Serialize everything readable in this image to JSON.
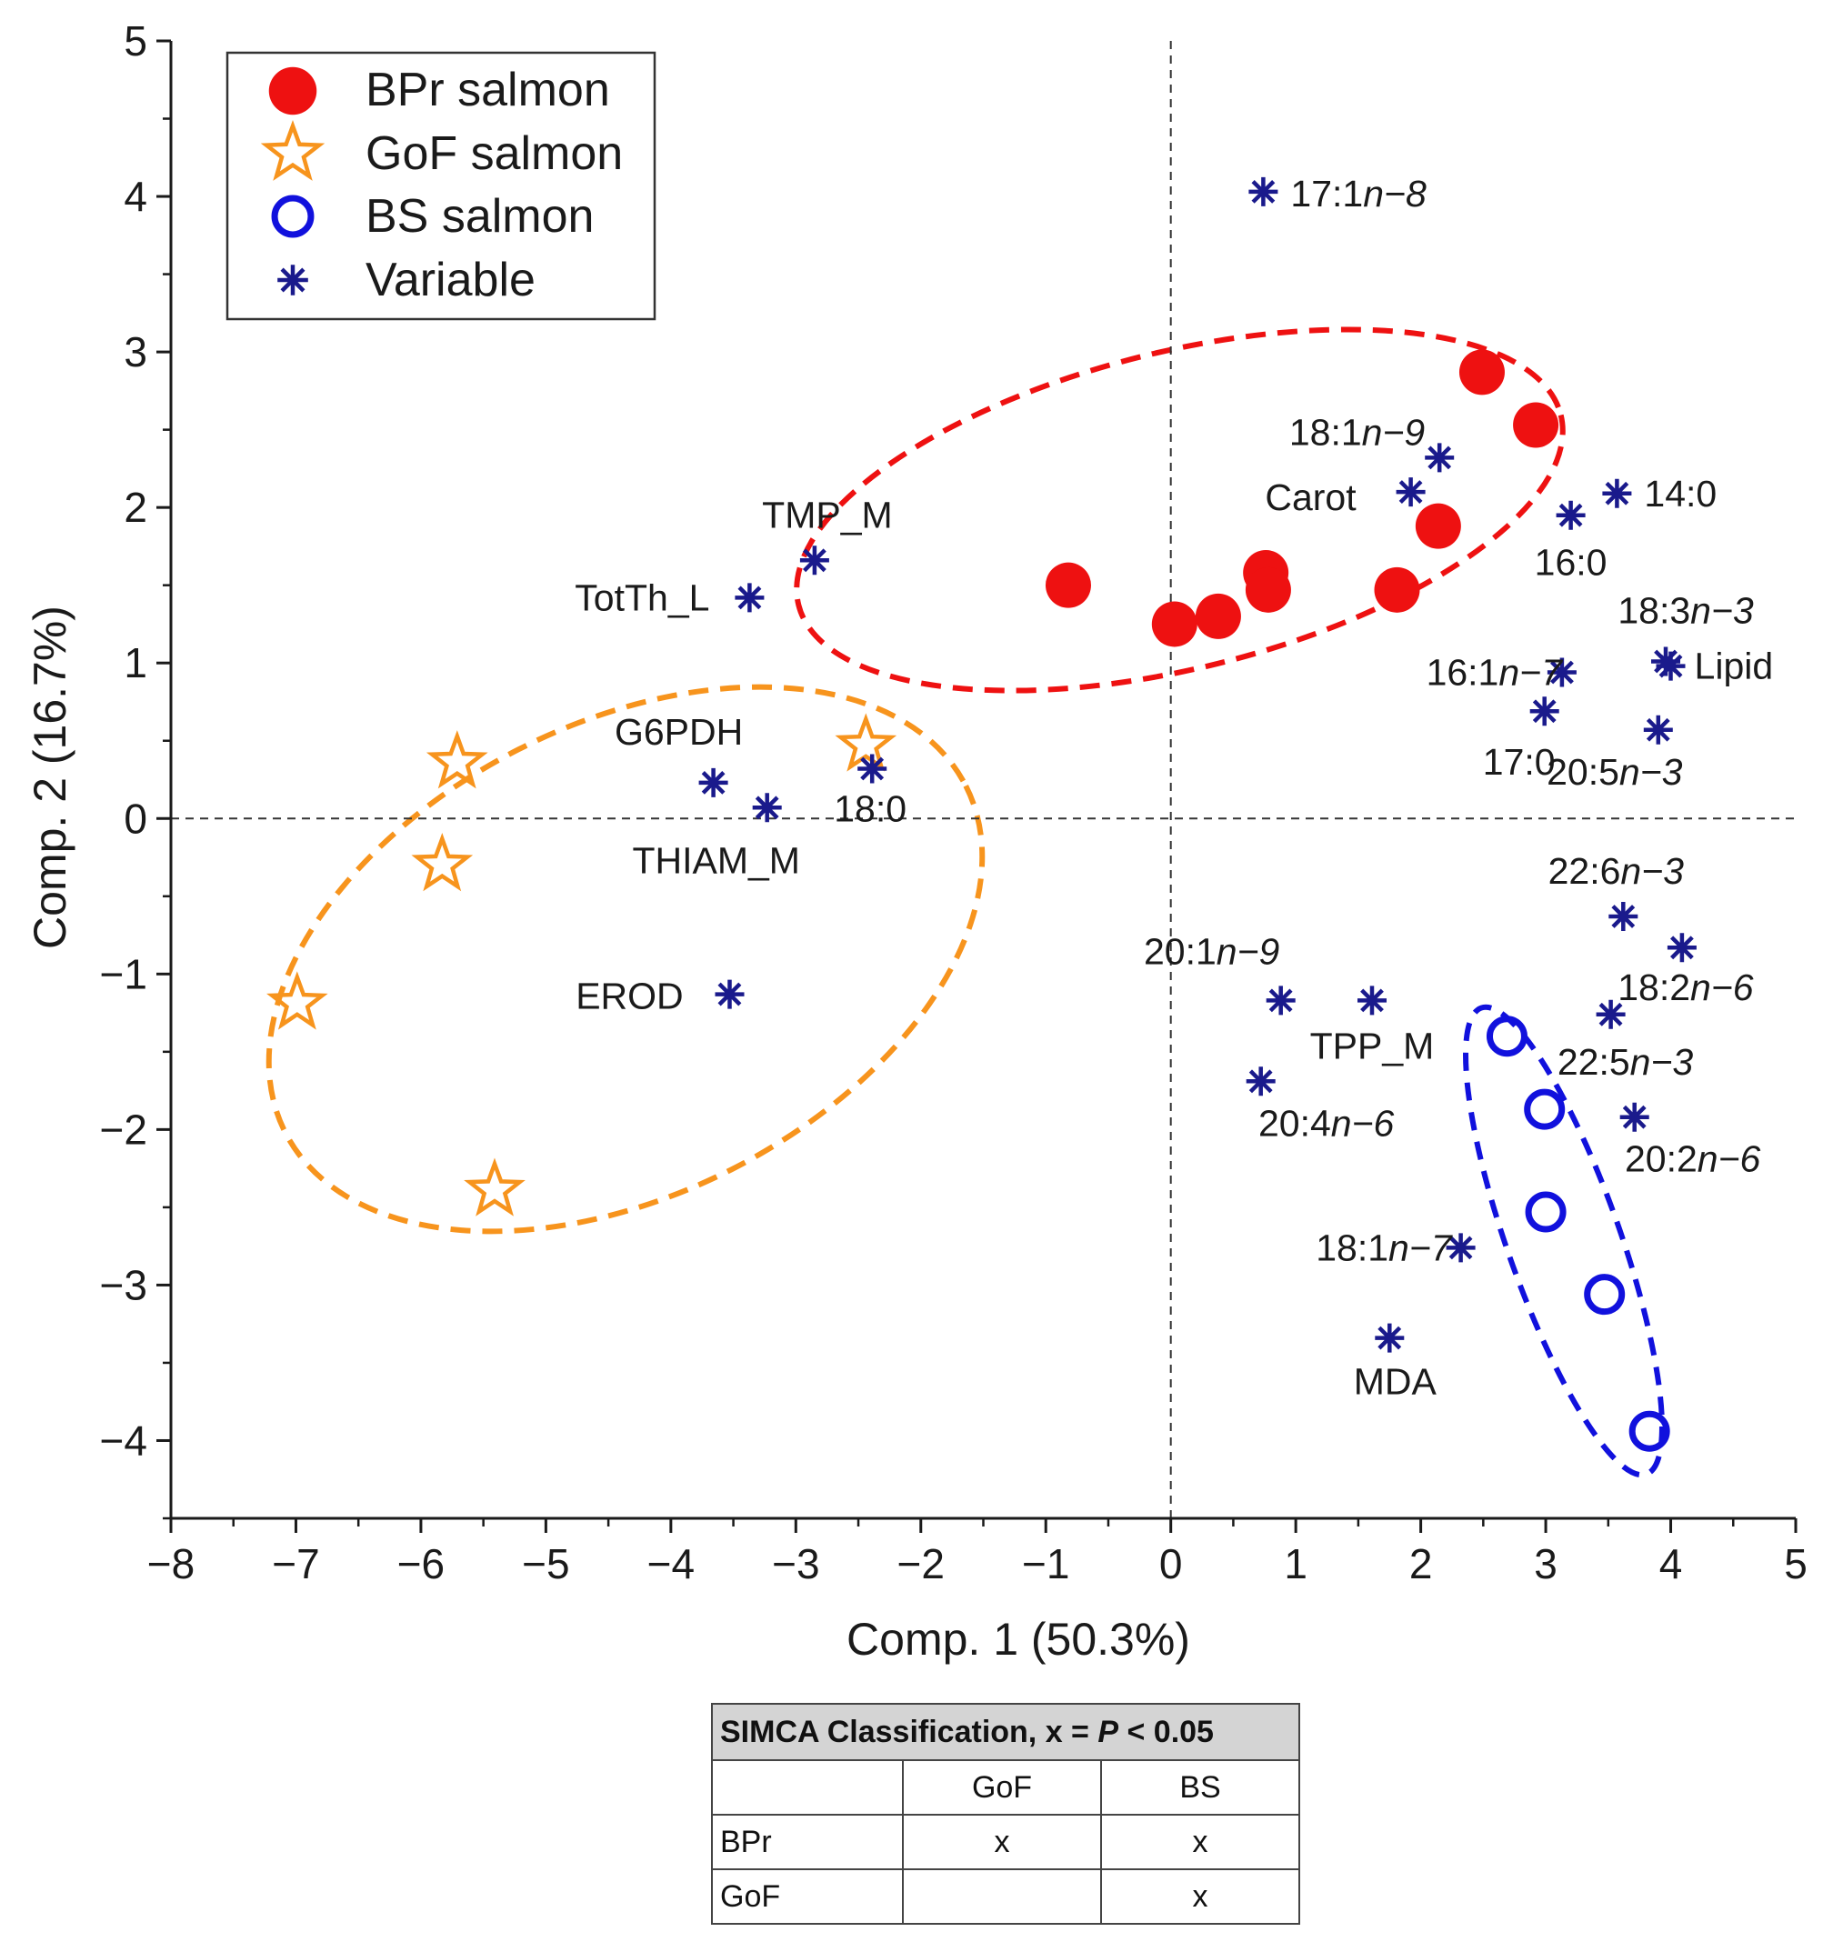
{
  "chart_data": {
    "type": "scatter",
    "title": "",
    "xlabel": "Comp. 1 (50.3%)",
    "ylabel": "Comp. 2 (16.7%)",
    "xlim": [
      -8,
      5
    ],
    "ylim": [
      -4.5,
      5
    ],
    "xticks": [
      -8,
      -7,
      -6,
      -5,
      -4,
      -3,
      -2,
      -1,
      0,
      1,
      2,
      3,
      4,
      5
    ],
    "xtick_labels": [
      "−8",
      "−7",
      "−6",
      "−5",
      "−4",
      "−3",
      "−2",
      "−1",
      "0",
      "1",
      "2",
      "3",
      "4",
      "5"
    ],
    "yticks": [
      -4,
      -3,
      -2,
      -1,
      0,
      1,
      2,
      3,
      4,
      5
    ],
    "ytick_labels": [
      "−4",
      "−3",
      "−2",
      "−1",
      "0",
      "1",
      "2",
      "3",
      "4",
      "5"
    ],
    "legend": {
      "placement": "top-left",
      "entries": [
        {
          "label": "BPr salmon",
          "marker": "filled-circle",
          "color": "#ee1111"
        },
        {
          "label": "GoF salmon",
          "marker": "star",
          "color": "#f7941d"
        },
        {
          "label": "BS salmon",
          "marker": "open-circle",
          "color": "#1111dd"
        },
        {
          "label": "Variable",
          "marker": "asterisk",
          "color": "#1a1a8c"
        }
      ]
    },
    "series": [
      {
        "name": "BPr salmon",
        "color": "#ee1111",
        "points": [
          {
            "x": -0.82,
            "y": 1.5
          },
          {
            "x": 0.03,
            "y": 1.25
          },
          {
            "x": 0.38,
            "y": 1.3
          },
          {
            "x": 0.76,
            "y": 1.58
          },
          {
            "x": 0.78,
            "y": 1.47
          },
          {
            "x": 1.81,
            "y": 1.47
          },
          {
            "x": 2.14,
            "y": 1.88
          },
          {
            "x": 2.49,
            "y": 2.87
          },
          {
            "x": 2.92,
            "y": 2.53
          }
        ]
      },
      {
        "name": "GoF salmon",
        "color": "#f7941d",
        "points": [
          {
            "x": -5.71,
            "y": 0.36
          },
          {
            "x": -5.83,
            "y": -0.3
          },
          {
            "x": -6.99,
            "y": -1.19
          },
          {
            "x": -5.41,
            "y": -2.39
          },
          {
            "x": -2.44,
            "y": 0.47
          }
        ]
      },
      {
        "name": "BS salmon",
        "color": "#1111dd",
        "points": [
          {
            "x": 2.69,
            "y": -1.4
          },
          {
            "x": 2.99,
            "y": -1.87
          },
          {
            "x": 3.0,
            "y": -2.53
          },
          {
            "x": 3.47,
            "y": -3.06
          },
          {
            "x": 3.83,
            "y": -3.94
          }
        ]
      },
      {
        "name": "Variable",
        "color": "#1a1a8c",
        "points": [
          {
            "label": "17:1n−8",
            "x": 0.74,
            "y": 4.03
          },
          {
            "label": "18:1n−9",
            "x": 2.15,
            "y": 2.32
          },
          {
            "label": "Carot",
            "x": 1.92,
            "y": 2.1
          },
          {
            "label": "14:0",
            "x": 3.57,
            "y": 2.09
          },
          {
            "label": "16:0",
            "x": 3.2,
            "y": 1.95
          },
          {
            "label": "18:3n−3",
            "x": 3.96,
            "y": 1.01
          },
          {
            "label": "Lipid",
            "x": 4.0,
            "y": 0.98
          },
          {
            "label": "16:1n−7",
            "x": 3.13,
            "y": 0.94
          },
          {
            "label": "17:0",
            "x": 2.99,
            "y": 0.69
          },
          {
            "label": "20:5n−3",
            "x": 3.9,
            "y": 0.57
          },
          {
            "label": "TMP_M",
            "x": -2.85,
            "y": 1.66
          },
          {
            "label": "TotTh_L",
            "x": -3.37,
            "y": 1.42
          },
          {
            "label": "G6PDH",
            "x": -3.66,
            "y": 0.23
          },
          {
            "label": "18:0",
            "x": -2.39,
            "y": 0.32
          },
          {
            "label": "THIAM_M",
            "x": -3.23,
            "y": 0.07
          },
          {
            "label": "EROD",
            "x": -3.53,
            "y": -1.13
          },
          {
            "label": "22:6n−3",
            "x": 3.62,
            "y": -0.63
          },
          {
            "label": "18:2n−6",
            "x": 4.09,
            "y": -0.83
          },
          {
            "label": "20:1n−9",
            "x": 0.88,
            "y": -1.17
          },
          {
            "label": "TPP_M",
            "x": 1.61,
            "y": -1.17
          },
          {
            "label": "22:5n−3",
            "x": 3.52,
            "y": -1.26
          },
          {
            "label": "20:4n−6",
            "x": 0.72,
            "y": -1.69
          },
          {
            "label": "20:2n−6",
            "x": 3.71,
            "y": -1.92
          },
          {
            "label": "18:1n−7",
            "x": 2.32,
            "y": -2.76
          },
          {
            "label": "MDA",
            "x": 1.75,
            "y": -3.34
          }
        ]
      }
    ],
    "confidence_ellipses": [
      {
        "group": "BPr salmon",
        "color": "#ee1111",
        "style": "dashed"
      },
      {
        "group": "GoF salmon",
        "color": "#f7941d",
        "style": "dashed"
      },
      {
        "group": "BS salmon",
        "color": "#1111dd",
        "style": "dashed"
      }
    ],
    "reference_lines": [
      {
        "axis": "x",
        "value": 0,
        "style": "dashed"
      },
      {
        "axis": "y",
        "value": 0,
        "style": "dashed"
      }
    ]
  },
  "simca_table": {
    "title_prefix": "SIMCA Classification, x = ",
    "title_p": "P",
    "title_suffix": " < 0.05",
    "col_headers": [
      "GoF",
      "BS"
    ],
    "rows": [
      {
        "label": "BPr",
        "cells": [
          "x",
          "x"
        ]
      },
      {
        "label": "GoF",
        "cells": [
          "",
          "x"
        ]
      }
    ]
  }
}
